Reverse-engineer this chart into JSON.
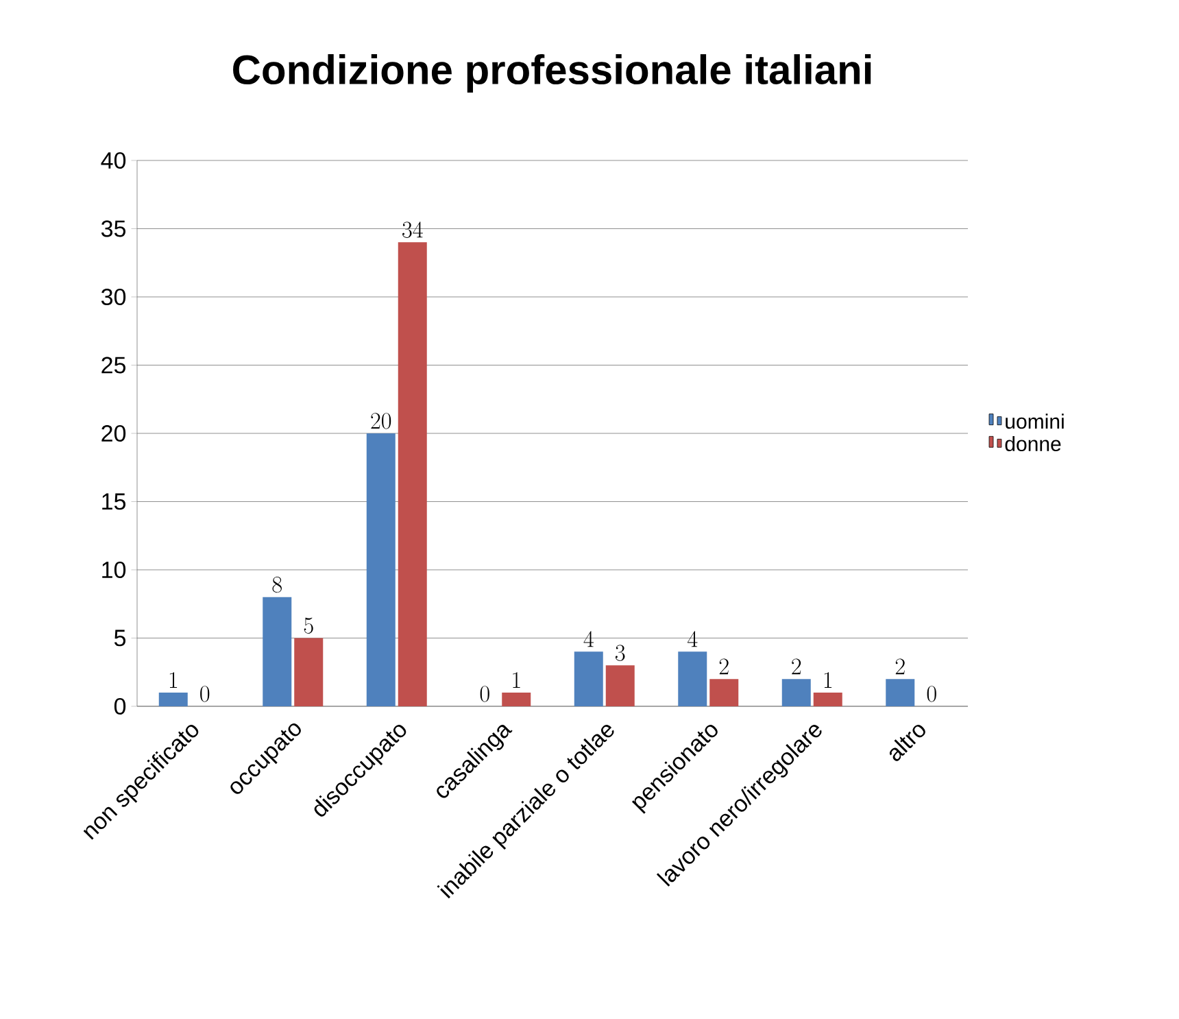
{
  "chart_data": {
    "type": "bar",
    "title": "Condizione professionale italiani",
    "categories": [
      "non specificato",
      "occupato",
      "disoccupato",
      "casalinga",
      "inabile parziale o totlae",
      "pensionato",
      "lavoro nero/irregolare",
      "altro"
    ],
    "series": [
      {
        "name": "uomini",
        "color": "#4f81bd",
        "values": [
          1,
          8,
          20,
          0,
          4,
          4,
          2,
          2
        ]
      },
      {
        "name": "donne",
        "color": "#c0504d",
        "values": [
          0,
          5,
          34,
          1,
          3,
          2,
          1,
          0
        ]
      }
    ],
    "ylim": [
      0,
      40
    ],
    "yticks": [
      0,
      5,
      10,
      15,
      20,
      25,
      30,
      35,
      40
    ],
    "grid": "y",
    "legend": "right",
    "data_labels": true
  }
}
